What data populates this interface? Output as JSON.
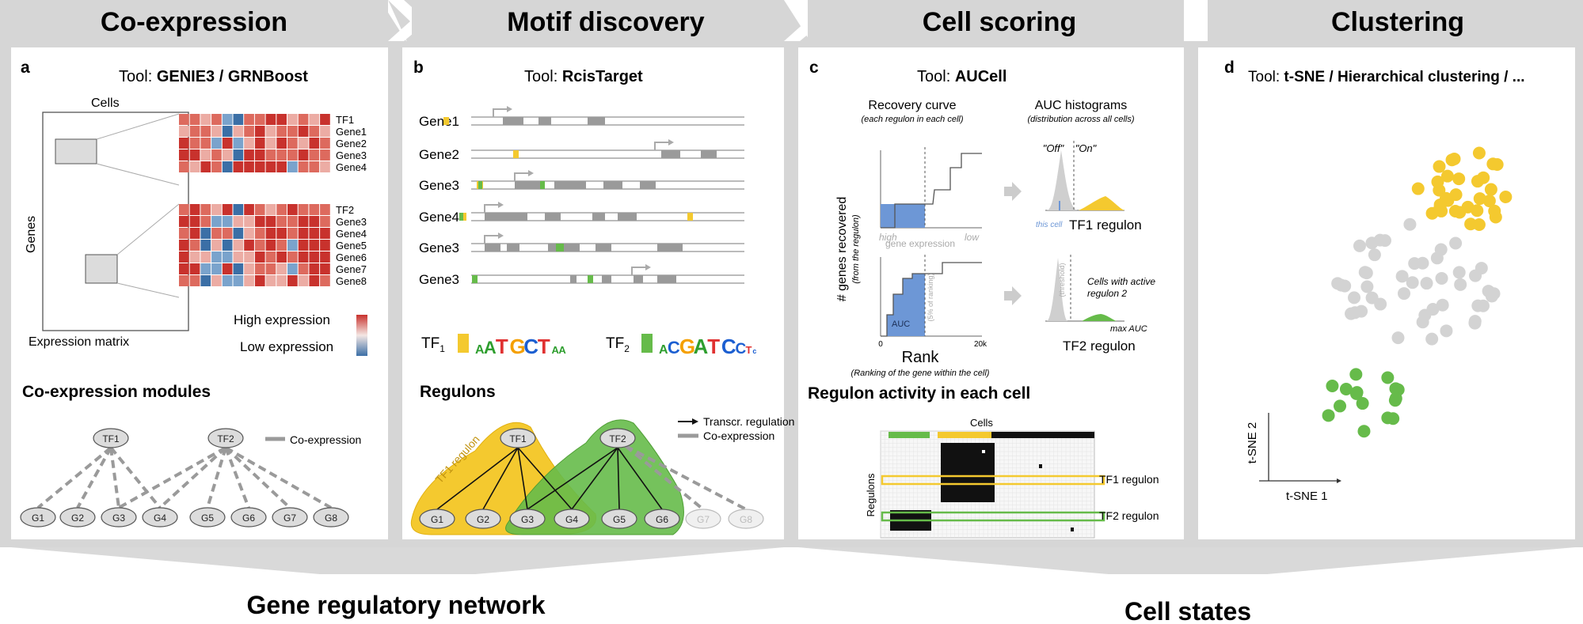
{
  "stages": [
    "Co-expression",
    "Motif discovery",
    "Cell scoring",
    "Clustering"
  ],
  "outcomes": [
    "Gene regulatory network",
    "Cell states"
  ],
  "panel_a": {
    "letter": "a",
    "tool_prefix": "Tool: ",
    "tool_name": "GENIE3 / GRNBoost",
    "cells_label": "Cells",
    "genes_label": "Genes",
    "matrix_label": "Expression matrix",
    "module1_rows": [
      "TF1",
      "Gene1",
      "Gene2",
      "Gene3",
      "Gene4"
    ],
    "module2_rows": [
      "TF2",
      "Gene3",
      "Gene4",
      "Gene5",
      "Gene6",
      "Gene7",
      "Gene8"
    ],
    "high_label": "High expression",
    "low_label": "Low expression",
    "modules_title": "Co-expression modules",
    "legend_coexpr": "Co-expression",
    "tf_nodes": [
      "TF1",
      "TF2"
    ],
    "g_nodes": [
      "G1",
      "G2",
      "G3",
      "G4",
      "G5",
      "G6",
      "G7",
      "G8"
    ]
  },
  "panel_b": {
    "letter": "b",
    "tool_prefix": "Tool: ",
    "tool_name": "RcisTarget",
    "genes": [
      "Gene1",
      "Gene2",
      "Gene3",
      "Gene4",
      "Gene3",
      "Gene3"
    ],
    "tf1_label": "TF",
    "tf1_sub": "1",
    "tf2_label": "TF",
    "tf2_sub": "2",
    "motif1": [
      {
        "ch": "A",
        "color": "#2e9e2e"
      },
      {
        "ch": "A",
        "color": "#2e9e2e"
      },
      {
        "ch": "T",
        "color": "#e03131"
      },
      {
        "ch": "G",
        "color": "#f5a000"
      },
      {
        "ch": "C",
        "color": "#1c5fd1"
      },
      {
        "ch": "T",
        "color": "#e03131"
      },
      {
        "ch": "A",
        "color": "#2e9e2e"
      },
      {
        "ch": "A",
        "color": "#2e9e2e"
      }
    ],
    "motif2": [
      {
        "ch": "A",
        "color": "#2e9e2e"
      },
      {
        "ch": "C",
        "color": "#1c5fd1"
      },
      {
        "ch": "G",
        "color": "#f5a000"
      },
      {
        "ch": "A",
        "color": "#2e9e2e"
      },
      {
        "ch": "T",
        "color": "#e03131"
      },
      {
        "ch": "C",
        "color": "#1c5fd1"
      },
      {
        "ch": "C",
        "color": "#1c5fd1"
      },
      {
        "ch": "T",
        "color": "#e03131"
      },
      {
        "ch": "c",
        "color": "#1c5fd1"
      }
    ],
    "regulons_title": "Regulons",
    "legend_transcr": "Transcr. regulation",
    "legend_coexpr": "Co-expression",
    "tf1_regulon_label": "TF1 regulon",
    "tf_nodes": [
      "TF1",
      "TF2"
    ],
    "g_nodes": [
      "G1",
      "G2",
      "G3",
      "G4",
      "G5",
      "G6",
      "G7",
      "G8"
    ]
  },
  "panel_c": {
    "letter": "c",
    "tool_prefix": "Tool: ",
    "tool_name": "AUCell",
    "recovery_title": "Recovery curve",
    "recovery_sub": "(each regulon in each cell)",
    "auc_title": "AUC histograms",
    "auc_sub": "(distribution across all cells)",
    "ylabel": "# genes recovered",
    "ylabel_sub": "(from the regulon)",
    "high": "high",
    "low": "low",
    "gene_expression": "gene expression",
    "auc_label": "AUC",
    "pct_label": "(5% of ranking)",
    "x_zero": "0",
    "x_max": "20k",
    "rank_label": "Rank",
    "rank_sub": "(Ranking of the gene within the cell)",
    "off_label": "\"Off\"",
    "on_label": "\"On\"",
    "this_cell": "this cell",
    "threshold_label": "(threshold)",
    "tf1_regulon": "TF1 regulon",
    "tf2_regulon": "TF2 regulon",
    "cells_active": "Cells with active",
    "cells_active2": "regulon 2",
    "max_auc": "max AUC",
    "activity_title": "Regulon activity in each cell",
    "cells_label": "Cells",
    "regulons_label": "Regulons",
    "row_tf1": "TF1 regulon",
    "row_tf2": "TF2 regulon"
  },
  "panel_d": {
    "letter": "d",
    "tool_prefix": "Tool: ",
    "tool_name": "t-SNE / Hierarchical clustering / ...",
    "axis_x": "t-SNE 1",
    "axis_y": "t-SNE 2"
  },
  "colors": {
    "yellow": "#f4c92f",
    "green": "#66bb4a",
    "grey_dot": "#d3d3d3",
    "heat_red": "#c8322d",
    "heat_blue": "#3b6fa6",
    "gene_block": "#9a9a9a"
  }
}
